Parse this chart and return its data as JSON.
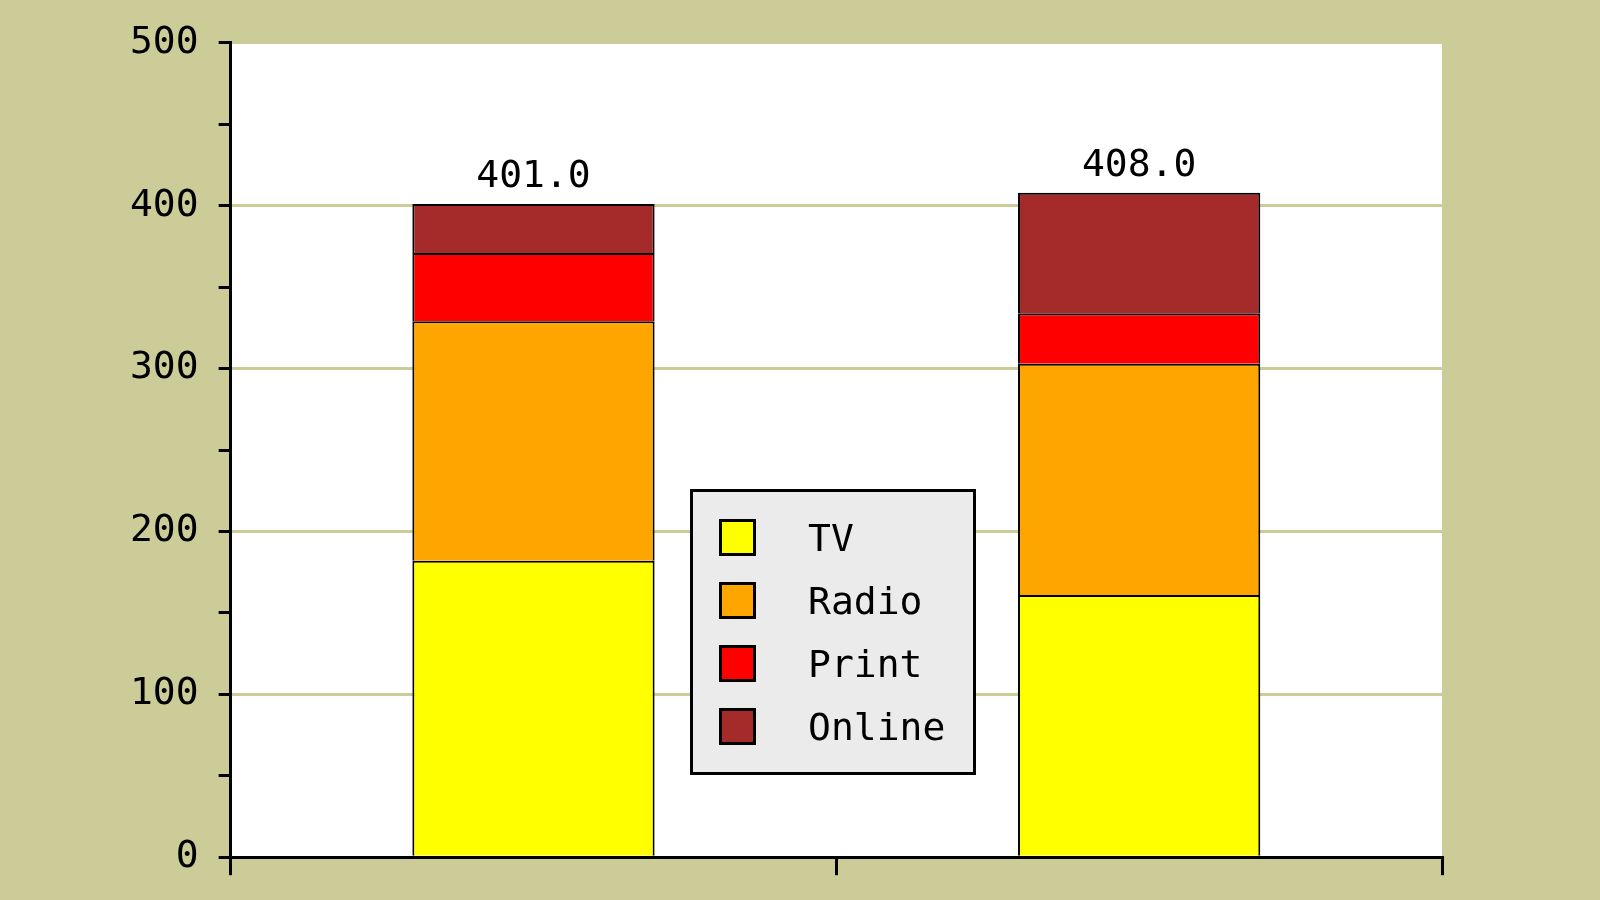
{
  "chart_data": {
    "type": "bar",
    "stacked": true,
    "categories": [
      null,
      null
    ],
    "series": [
      {
        "name": "TV",
        "color": "#ffff00",
        "values": [
          182,
          161
        ]
      },
      {
        "name": "Radio",
        "color": "#ffa500",
        "values": [
          147,
          142
        ]
      },
      {
        "name": "Print",
        "color": "#ff0000",
        "values": [
          42,
          31
        ]
      },
      {
        "name": "Online",
        "color": "#a52a2a",
        "values": [
          30,
          74
        ]
      }
    ],
    "totals": [
      "401.0",
      "408.0"
    ],
    "ylim": [
      0,
      500
    ],
    "yticks": [
      0,
      {
        "value": 50,
        "label": null
      },
      100,
      {
        "value": 150,
        "label": null
      },
      200,
      {
        "value": 250,
        "label": null
      },
      300,
      {
        "value": 350,
        "label": null
      },
      400,
      {
        "value": 450,
        "label": null
      },
      500
    ],
    "grid": "y",
    "legend": "bottom"
  }
}
